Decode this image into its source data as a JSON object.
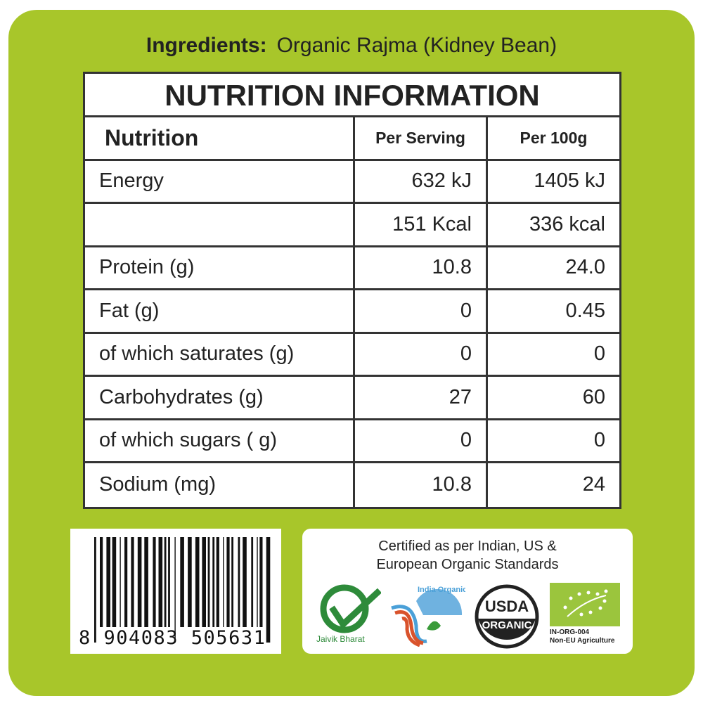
{
  "ingredients": {
    "label": "Ingredients:",
    "value": "Organic Rajma (Kidney Bean)"
  },
  "table": {
    "title": "NUTRITION INFORMATION",
    "headers": [
      "Nutrition",
      "Per Serving",
      "Per 100g"
    ],
    "rows": [
      [
        "Energy",
        "632 kJ",
        "1405 kJ"
      ],
      [
        "",
        "151 Kcal",
        "336 kcal"
      ],
      [
        "Protein (g)",
        "10.8",
        "24.0"
      ],
      [
        "Fat (g)",
        "0",
        "0.45"
      ],
      [
        "of which saturates (g)",
        "0",
        "0"
      ],
      [
        "Carbohydrates (g)",
        "27",
        "60"
      ],
      [
        "of which sugars ( g)",
        "0",
        "0"
      ],
      [
        "Sodium (mg)",
        "10.8",
        "24"
      ]
    ]
  },
  "barcode": {
    "number": "8 904083 505631"
  },
  "certification": {
    "text_line1": "Certified as per Indian, US &",
    "text_line2": "European Organic Standards",
    "logos": {
      "jaivik": "Jaivik Bharat",
      "india_organic": "India Organic",
      "usda_top": "USDA",
      "usda_bottom": "ORGANIC",
      "eu_code": "IN-ORG-004",
      "eu_note": "Non-EU Agriculture"
    }
  },
  "colors": {
    "background": "#a8c62a",
    "eu_green": "#9bc53d",
    "jaivik_green": "#2e8b3a"
  }
}
